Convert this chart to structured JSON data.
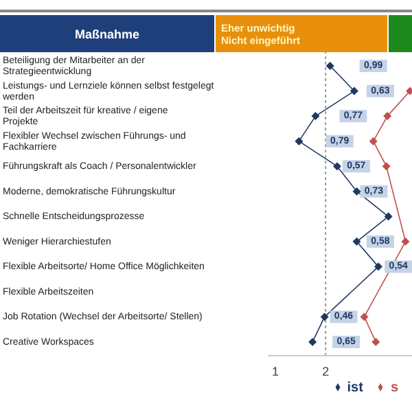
{
  "chart_data": {
    "type": "line",
    "orientation": "horizontal",
    "ylabel": "Maßnahme",
    "categories": [
      "Beteiligung der Mitarbeiter an der Strategieentwicklung",
      "Leistungs- und Lernziele können  selbst festgelegt werden",
      "Teil der Arbeitszeit für kreative / eigene Projekte",
      "Flexibler Wechsel zwischen Führungs- und Fachkarriere",
      "Führungskraft als Coach / Personalentwickler",
      "Moderne, demokratische Führungskultur",
      "Schnelle Entscheidungsprozesse",
      "Weniger Hierarchiestufen",
      "Flexible Arbeitsorte/  Home Office Möglichkeiten",
      "Flexible Arbeitszeiten",
      "Job Rotation (Wechsel der Arbeitsorte/ Stellen)",
      "Creative  Workspaces"
    ],
    "series": [
      {
        "name": "ist",
        "color": "#1f3864",
        "values": [
          2.09,
          2.57,
          1.8,
          1.47,
          2.23,
          2.62,
          3.25,
          2.62,
          3.05,
          null,
          1.98,
          1.74
        ]
      },
      {
        "name": "s",
        "color": "#c0504d",
        "values": [
          null,
          3.68,
          3.23,
          2.95,
          3.21,
          null,
          null,
          3.59,
          null,
          null,
          2.77,
          3.0
        ]
      }
    ],
    "xlim": [
      0.85,
      3.72
    ],
    "xticks": [
      1,
      2
    ],
    "marker": "diamond",
    "line_style": "solid",
    "grid": false,
    "legend": "bottom right",
    "ref_lines": [
      {
        "axis": "x",
        "value": 2,
        "color": "#999999",
        "line_style": "dotted"
      }
    ],
    "annotations": [
      "Eher unwichtig\nNicht eingeführt",
      {
        "text": "0,99",
        "x": 2.95,
        "y": "Beteiligung der Mitarbeiter an der Strategieentwicklung"
      },
      {
        "text": "0,63",
        "x": 3.09,
        "y": "Leistungs- und Lernziele können  selbst festgelegt werden"
      },
      {
        "text": "0,77",
        "x": 2.55,
        "y": "Teil der Arbeitszeit für kreative / eigene Projekte"
      },
      {
        "text": "0,79",
        "x": 2.28,
        "y": "Flexibler Wechsel zwischen Führungs- und Fachkarriere"
      },
      {
        "text": "0,57",
        "x": 2.61,
        "y": "Führungskraft als Coach / Personalentwickler"
      },
      {
        "text": "0,73",
        "x": 2.96,
        "y": "Moderne, demokratische Führungskultur"
      },
      {
        "text": "0,58",
        "x": 3.09,
        "y": "Weniger Hierarchiestufen"
      },
      {
        "text": "0,54",
        "x": 3.45,
        "y": "Flexible Arbeitsorte/  Home Office Möglichkeiten"
      },
      {
        "text": "0,46",
        "x": 2.36,
        "y": "Job Rotation (Wechsel der Arbeitsorte/ Stellen)"
      },
      {
        "text": "0,65",
        "x": 2.41,
        "y": "Creative  Workspaces"
      }
    ]
  }
}
